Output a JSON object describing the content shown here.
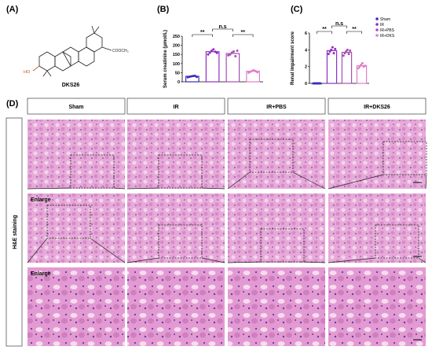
{
  "panel_labels": [
    "(A)",
    "(B)",
    "(C)",
    "(D)"
  ],
  "compound": {
    "name": "DKS26",
    "substituents": [
      "HO",
      "COOCH₃"
    ]
  },
  "chart_data": [
    {
      "type": "bar",
      "y_label": "Serum creatinine (μmol/L)",
      "values": [
        30,
        165,
        155,
        58
      ],
      "points": [
        [
          25,
          28,
          30,
          32,
          33,
          27
        ],
        [
          150,
          160,
          170,
          178,
          165,
          158
        ],
        [
          145,
          150,
          160,
          166,
          140,
          170
        ],
        [
          50,
          55,
          60,
          63,
          58,
          52
        ]
      ],
      "colors": [
        "#3b2fb5",
        "#8e2fc2",
        "#a64fb3",
        "#e07ec6"
      ],
      "ylim": [
        0,
        250
      ],
      "yticks": [
        0,
        50,
        100,
        150,
        200,
        250
      ],
      "significance": [
        "**",
        "n.s",
        "**"
      ]
    },
    {
      "type": "bar",
      "y_label": "Renal impairment score",
      "categories": [
        "Sham",
        "IR",
        "IR+PBS",
        "IR+DKS"
      ],
      "values": [
        0,
        3.9,
        3.7,
        2.1
      ],
      "points": [
        [
          0,
          0,
          0,
          0,
          0,
          0
        ],
        [
          3.5,
          3.8,
          4.0,
          4.3,
          3.6,
          4.1
        ],
        [
          3.3,
          3.6,
          3.8,
          4.0,
          3.5,
          3.9
        ],
        [
          1.8,
          2.0,
          2.2,
          2.4,
          2.0,
          2.1
        ]
      ],
      "colors": [
        "#3b2fb5",
        "#8e2fc2",
        "#a64fb3",
        "#e07ec6"
      ],
      "ylim": [
        0,
        6
      ],
      "yticks": [
        0,
        2,
        4,
        6
      ],
      "significance": [
        "**",
        "n.s",
        "**"
      ],
      "legend": "upper right"
    }
  ],
  "staining": {
    "groups": [
      "Sham",
      "IR",
      "IR+PBS",
      "IR+DKS26"
    ],
    "row_label": "H&E staining",
    "enlarge": [
      "Enlarge",
      "Enlarge"
    ]
  }
}
